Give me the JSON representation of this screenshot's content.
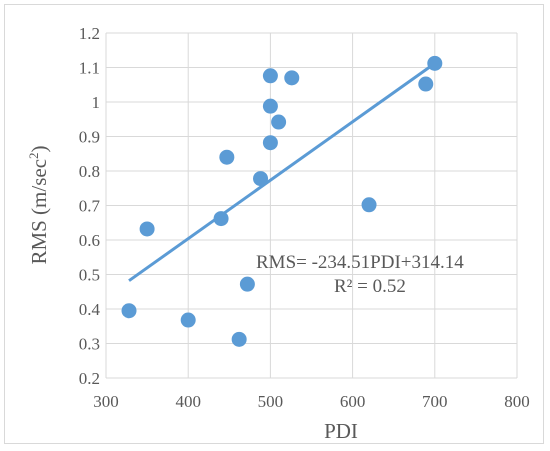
{
  "chart_data": {
    "type": "scatter",
    "title": "",
    "xlabel": "PDI",
    "ylabel_main": "RMS (m/sec",
    "ylabel_sup": "2",
    "ylabel_close": ")",
    "xlim": [
      300,
      800
    ],
    "ylim": [
      0.2,
      1.2
    ],
    "xticks": [
      "300",
      "400",
      "500",
      "600",
      "700",
      "800"
    ],
    "yticks": [
      "0.2",
      "0.3",
      "0.4",
      "0.5",
      "0.6",
      "0.7",
      "0.8",
      "0.9",
      "1",
      "1.1",
      "1.2"
    ],
    "grid": true,
    "marker_color": "#5b9bd5",
    "trendline_color": "#5b9bd5",
    "points": [
      {
        "x": 328,
        "y": 0.395
      },
      {
        "x": 350,
        "y": 0.632
      },
      {
        "x": 400,
        "y": 0.368
      },
      {
        "x": 440,
        "y": 0.662
      },
      {
        "x": 447,
        "y": 0.84
      },
      {
        "x": 462,
        "y": 0.312
      },
      {
        "x": 472,
        "y": 0.472
      },
      {
        "x": 488,
        "y": 0.778
      },
      {
        "x": 500,
        "y": 0.882
      },
      {
        "x": 500,
        "y": 0.988
      },
      {
        "x": 500,
        "y": 1.076
      },
      {
        "x": 510,
        "y": 0.942
      },
      {
        "x": 526,
        "y": 1.07
      },
      {
        "x": 620,
        "y": 0.702
      },
      {
        "x": 689,
        "y": 1.052
      },
      {
        "x": 700,
        "y": 1.112
      }
    ],
    "trendline": {
      "x": [
        328,
        700
      ],
      "y": [
        0.482,
        1.112
      ]
    },
    "annotations": {
      "equation": "RMS= -234.51PDI+314.14",
      "r2": "R² = 0.52"
    }
  }
}
